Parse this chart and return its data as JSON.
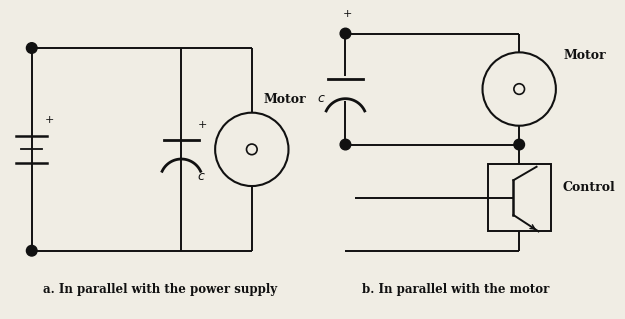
{
  "bg_color": "#f0ede4",
  "line_color": "#111111",
  "label_a": "a. In parallel with the power supply",
  "label_b": "b. In parallel with the motor",
  "motor_label": "Motor",
  "control_label": "Control",
  "cap_label": "c",
  "plus_label": "+",
  "figsize": [
    6.25,
    3.19
  ],
  "dpi": 100
}
